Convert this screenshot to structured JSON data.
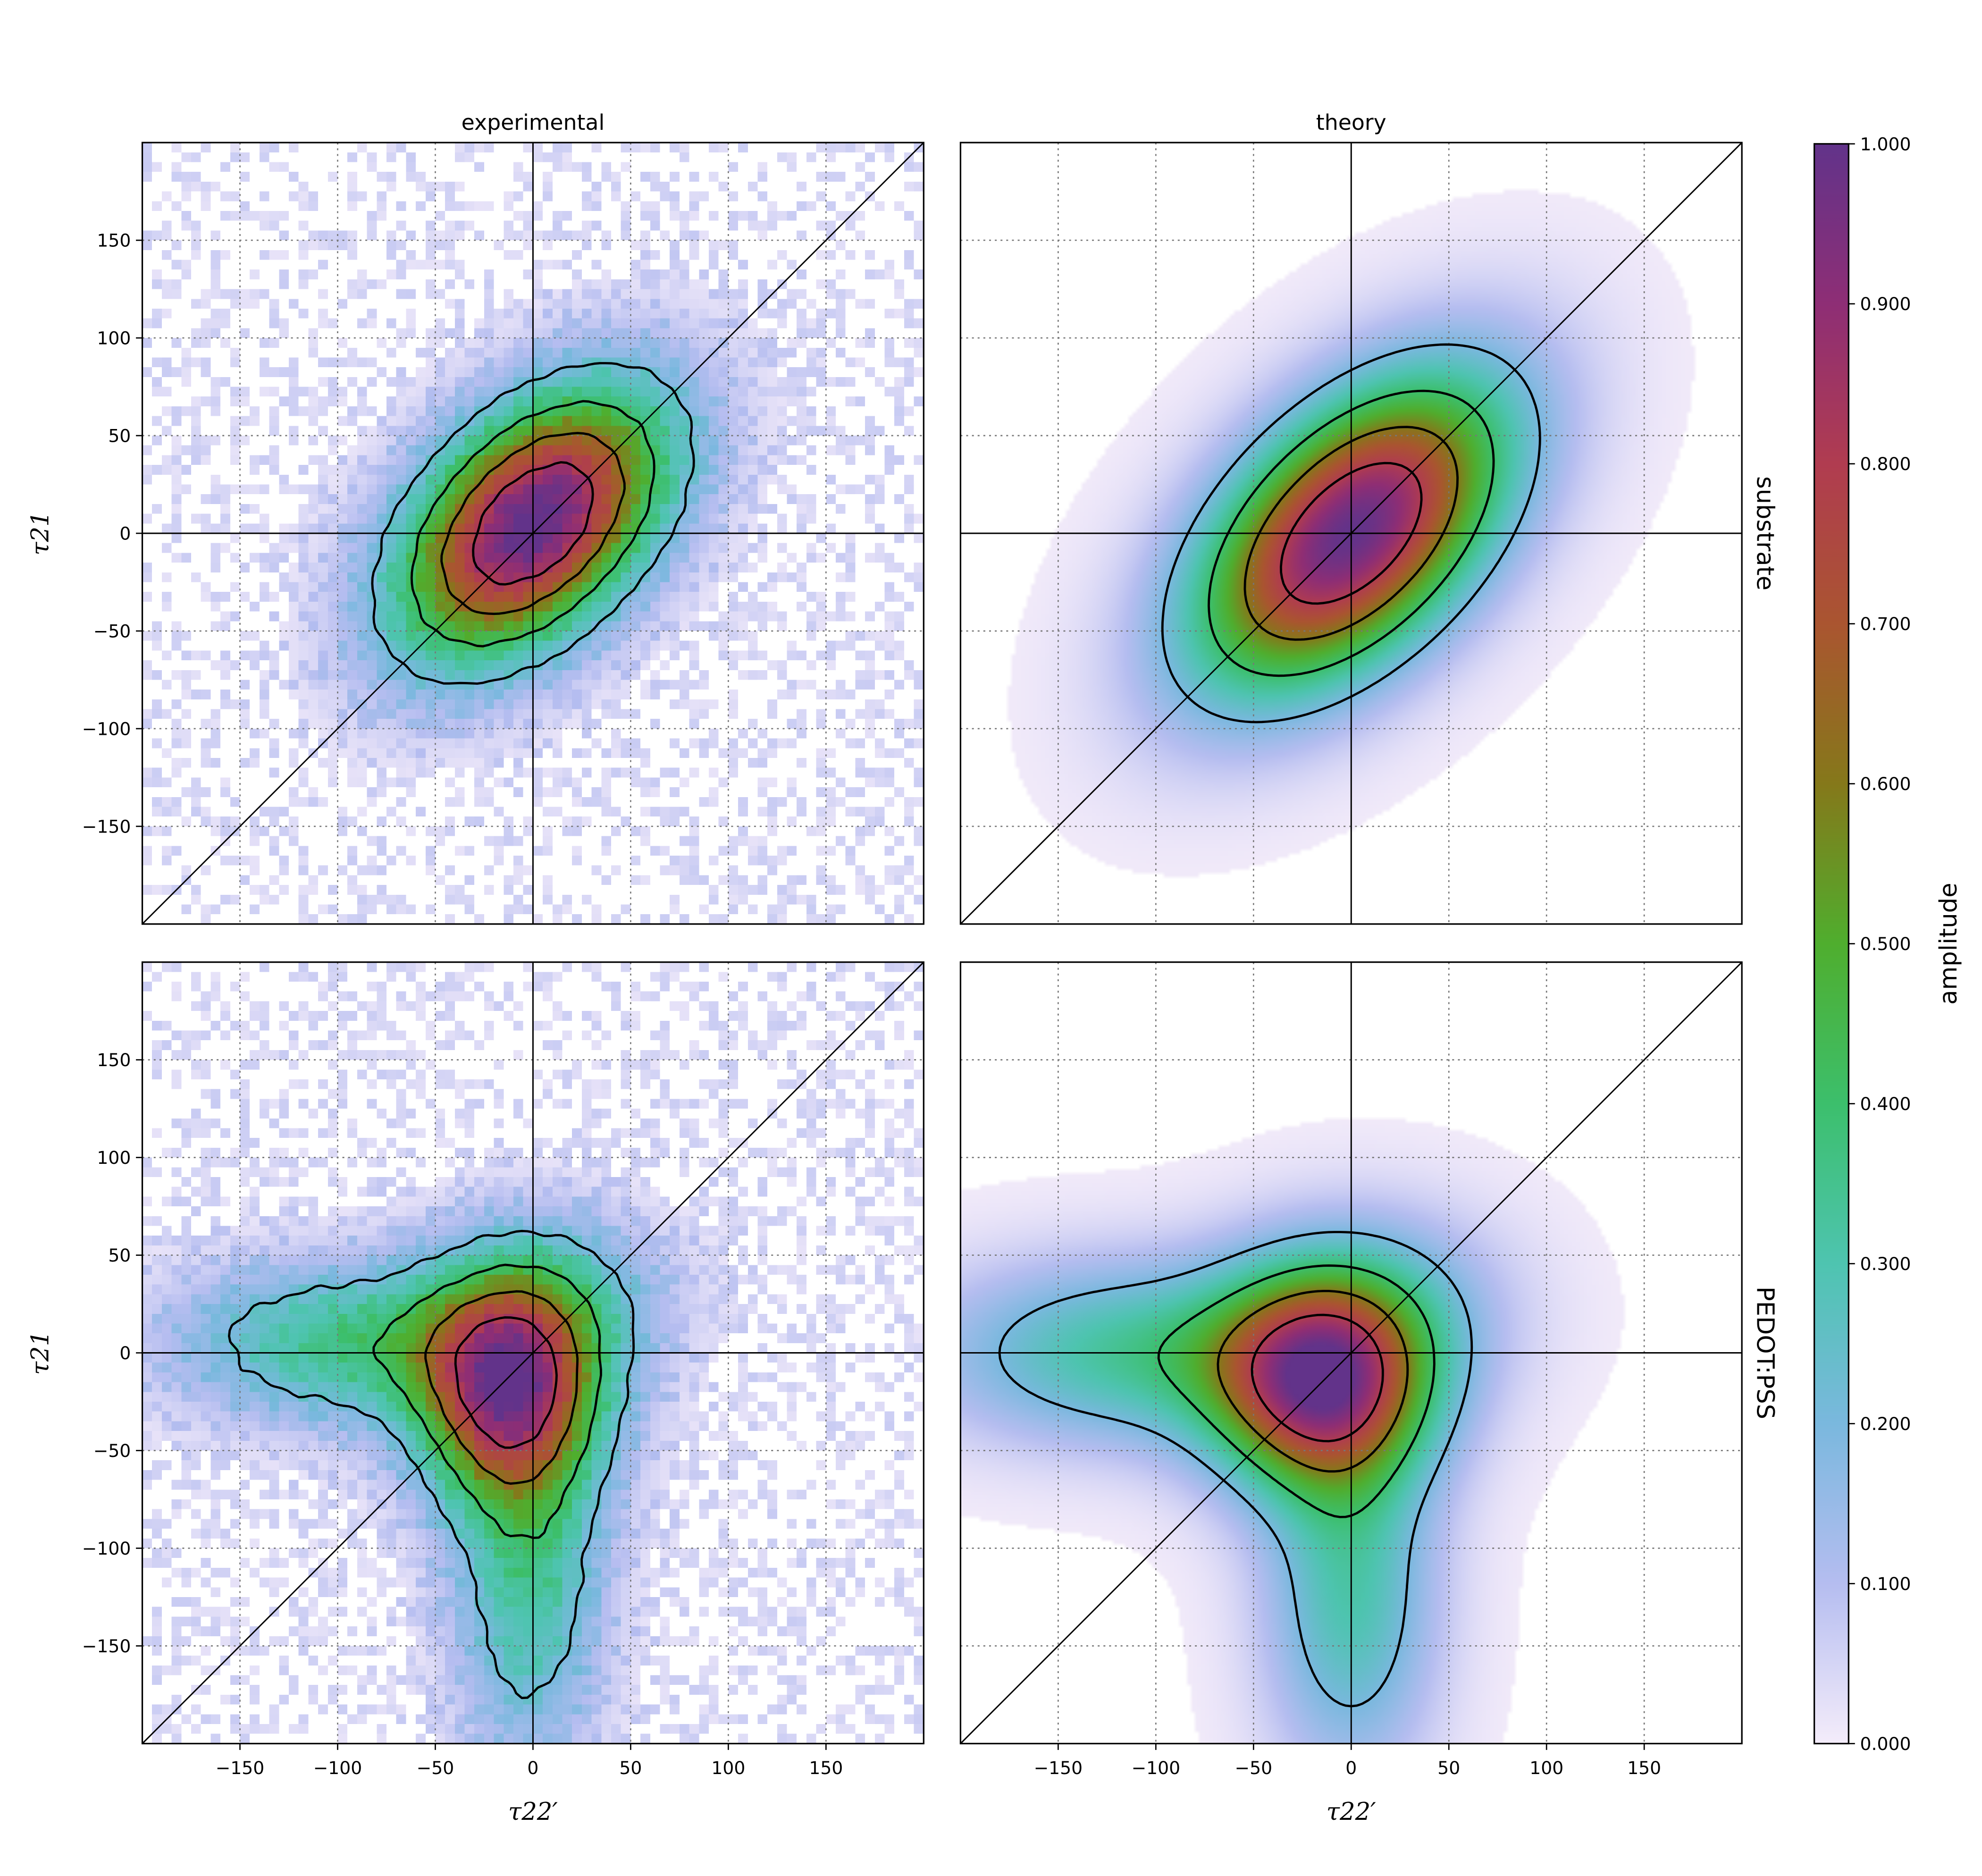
{
  "chart_data": [
    {
      "type": "heatmap",
      "panel": "top-left",
      "title": "experimental",
      "row_label": "",
      "ylabel": "τ21",
      "xlabel": "",
      "xlim": [
        -200,
        200
      ],
      "ylim": [
        -200,
        200
      ],
      "xticks": [],
      "yticks": [
        -150,
        -100,
        -50,
        0,
        50,
        100,
        150
      ],
      "grid": true,
      "contour_levels": [
        0.2,
        0.4,
        0.6,
        0.8
      ],
      "reference_lines": [
        "x=0",
        "y=0",
        "y=x"
      ],
      "peak": {
        "x": 0,
        "y": 5
      }
    },
    {
      "type": "heatmap",
      "panel": "top-right",
      "title": "theory",
      "row_label": "substrate",
      "ylabel": "",
      "xlabel": "",
      "xlim": [
        -200,
        200
      ],
      "ylim": [
        -200,
        200
      ],
      "xticks": [],
      "yticks": [],
      "grid": true,
      "contour_levels": [
        0.2,
        0.4,
        0.6,
        0.8
      ],
      "reference_lines": [
        "x=0",
        "y=0",
        "y=x"
      ],
      "peak": {
        "x": 0,
        "y": 0
      }
    },
    {
      "type": "heatmap",
      "panel": "bottom-left",
      "title": "",
      "row_label": "",
      "ylabel": "τ21",
      "xlabel": "τ22′",
      "xlim": [
        -200,
        200
      ],
      "ylim": [
        -200,
        200
      ],
      "xticks": [
        -150,
        -100,
        -50,
        0,
        50,
        100,
        150
      ],
      "yticks": [
        -150,
        -100,
        -50,
        0,
        50,
        100,
        150
      ],
      "grid": true,
      "contour_levels": [
        0.2,
        0.4,
        0.6,
        0.8
      ],
      "reference_lines": [
        "x=0",
        "y=0",
        "y=x"
      ],
      "peak": {
        "x": -10,
        "y": -20
      }
    },
    {
      "type": "heatmap",
      "panel": "bottom-right",
      "title": "",
      "row_label": "PEDOT:PSS",
      "ylabel": "",
      "xlabel": "τ22′",
      "xlim": [
        -200,
        200
      ],
      "ylim": [
        -200,
        200
      ],
      "xticks": [
        -150,
        -100,
        -50,
        0,
        50,
        100,
        150
      ],
      "yticks": [],
      "grid": true,
      "contour_levels": [
        0.2,
        0.4,
        0.6,
        0.8
      ],
      "reference_lines": [
        "x=0",
        "y=0",
        "y=x"
      ],
      "peak": {
        "x": -15,
        "y": -15
      }
    }
  ],
  "colorbar": {
    "label": "amplitude",
    "range": [
      0,
      1
    ],
    "ticks": [
      "0.000",
      "0.100",
      "0.200",
      "0.300",
      "0.400",
      "0.500",
      "0.600",
      "0.700",
      "0.800",
      "0.900",
      "1.000"
    ],
    "colors": [
      "#f4ecfa",
      "#b5bdf0",
      "#7ab8de",
      "#4ec4b0",
      "#3cbf6c",
      "#4fae2e",
      "#85781a",
      "#aa5530",
      "#b03c50",
      "#8e2e75",
      "#62338a"
    ]
  }
}
